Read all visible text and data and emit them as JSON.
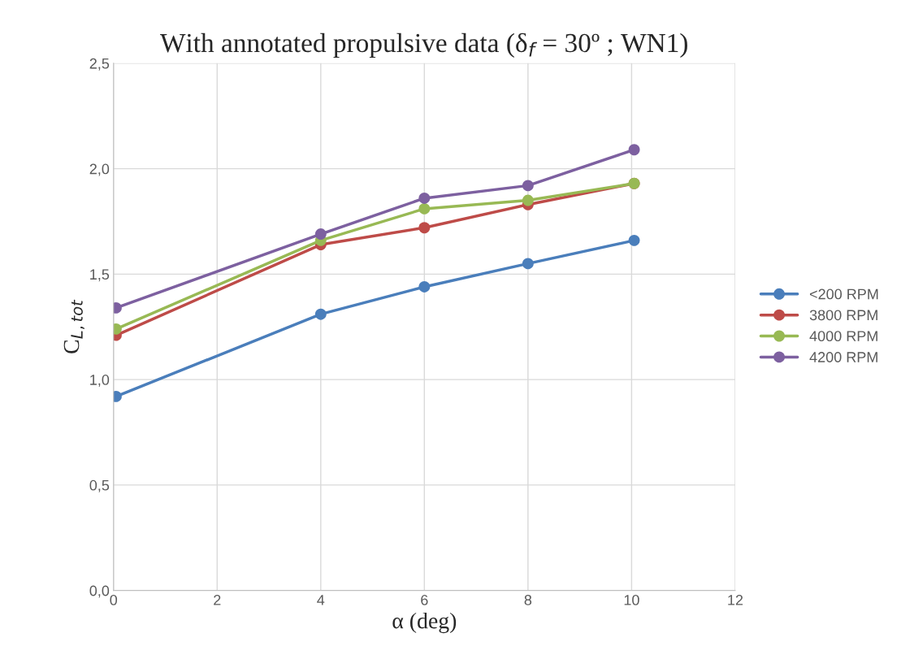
{
  "chart_data": {
    "type": "line",
    "title": "With annotated propulsive data (δ$_{f}$ = 30º ; WN1)",
    "xlabel": "α (deg)",
    "ylabel": "C$_{L,tot}$",
    "x": [
      0.05,
      4.0,
      6.0,
      8.0,
      10.05
    ],
    "series": [
      {
        "name": "<200 RPM",
        "color": "#4a7ebb",
        "values": [
          0.92,
          1.31,
          1.44,
          1.55,
          1.66
        ]
      },
      {
        "name": "3800 RPM",
        "color": "#be4b48",
        "values": [
          1.21,
          1.64,
          1.72,
          1.83,
          1.93
        ]
      },
      {
        "name": "4000 RPM",
        "color": "#98b954",
        "values": [
          1.24,
          1.66,
          1.81,
          1.85,
          1.93
        ]
      },
      {
        "name": "4200 RPM",
        "color": "#7d60a0",
        "values": [
          1.34,
          1.69,
          1.86,
          1.92,
          2.09
        ]
      }
    ],
    "xlim": [
      0,
      12
    ],
    "xticks": [
      0,
      2,
      4,
      6,
      8,
      10,
      12
    ],
    "ylim": [
      0,
      2.5
    ],
    "yticks": [
      {
        "value": 0,
        "label": "0,0"
      },
      {
        "value": 0.5,
        "label": "0,5"
      },
      {
        "value": 1.0,
        "label": "1,0"
      },
      {
        "value": 1.5,
        "label": "1,5"
      },
      {
        "value": 2.0,
        "label": "2,0"
      },
      {
        "value": 2.5,
        "label": "2,5"
      }
    ],
    "grid": true,
    "legend": "right",
    "marker": "circle",
    "line_style": "solid"
  }
}
